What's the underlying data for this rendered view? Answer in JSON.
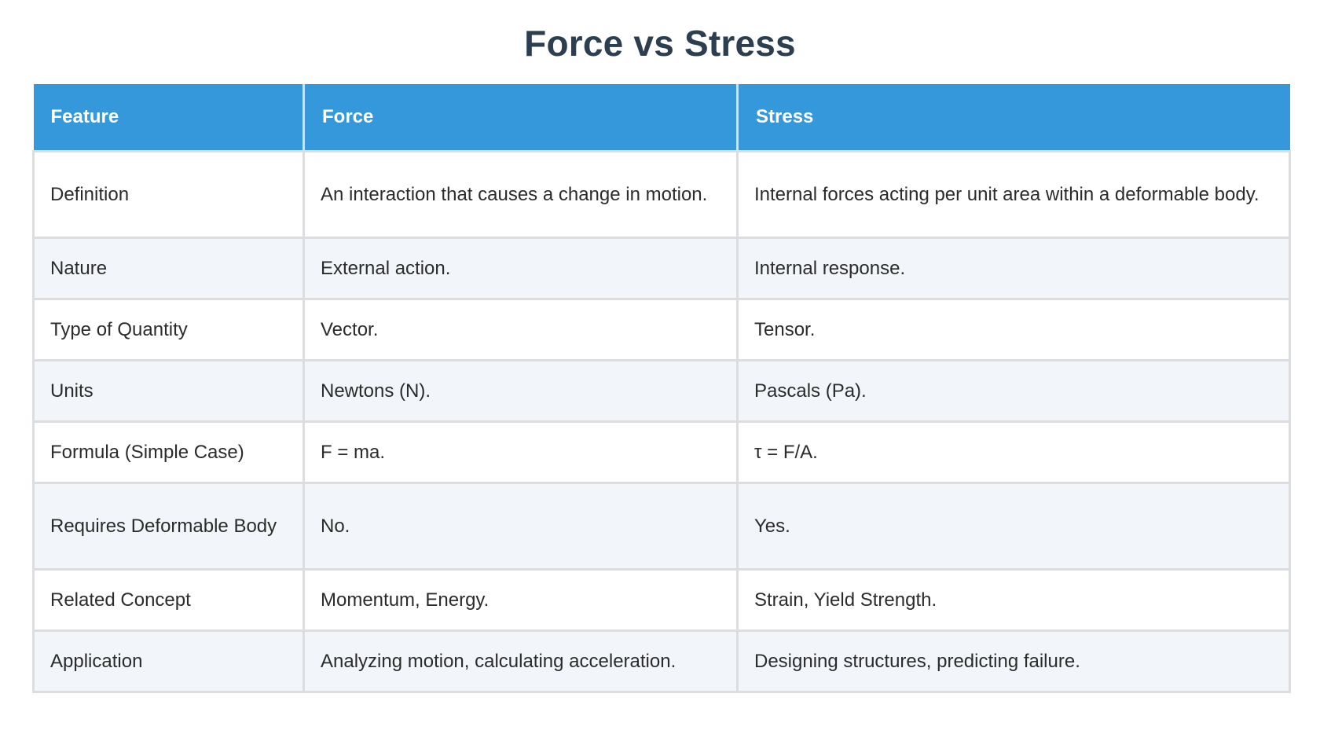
{
  "title": "Force vs Stress",
  "table": {
    "headers": [
      "Feature",
      "Force",
      "Stress"
    ],
    "rows": [
      [
        "Definition",
        "An interaction that causes a change in motion.",
        "Internal forces acting per unit area within a deformable body."
      ],
      [
        "Nature",
        "External action.",
        "Internal response."
      ],
      [
        "Type of Quantity",
        "Vector.",
        "Tensor."
      ],
      [
        "Units",
        "Newtons (N).",
        "Pascals (Pa)."
      ],
      [
        "Formula (Simple Case)",
        "F = ma.",
        "τ = F/A."
      ],
      [
        "Requires Deformable Body",
        "No.",
        "Yes."
      ],
      [
        "Related Concept",
        "Momentum, Energy.",
        "Strain, Yield Strength."
      ],
      [
        "Application",
        "Analyzing motion, calculating acceleration.",
        "Designing structures, predicting failure."
      ]
    ]
  },
  "colors": {
    "header_bg": "#3498db",
    "title": "#2c3e50",
    "stripe": "#f2f5f9",
    "grid": "#dcdde0"
  }
}
